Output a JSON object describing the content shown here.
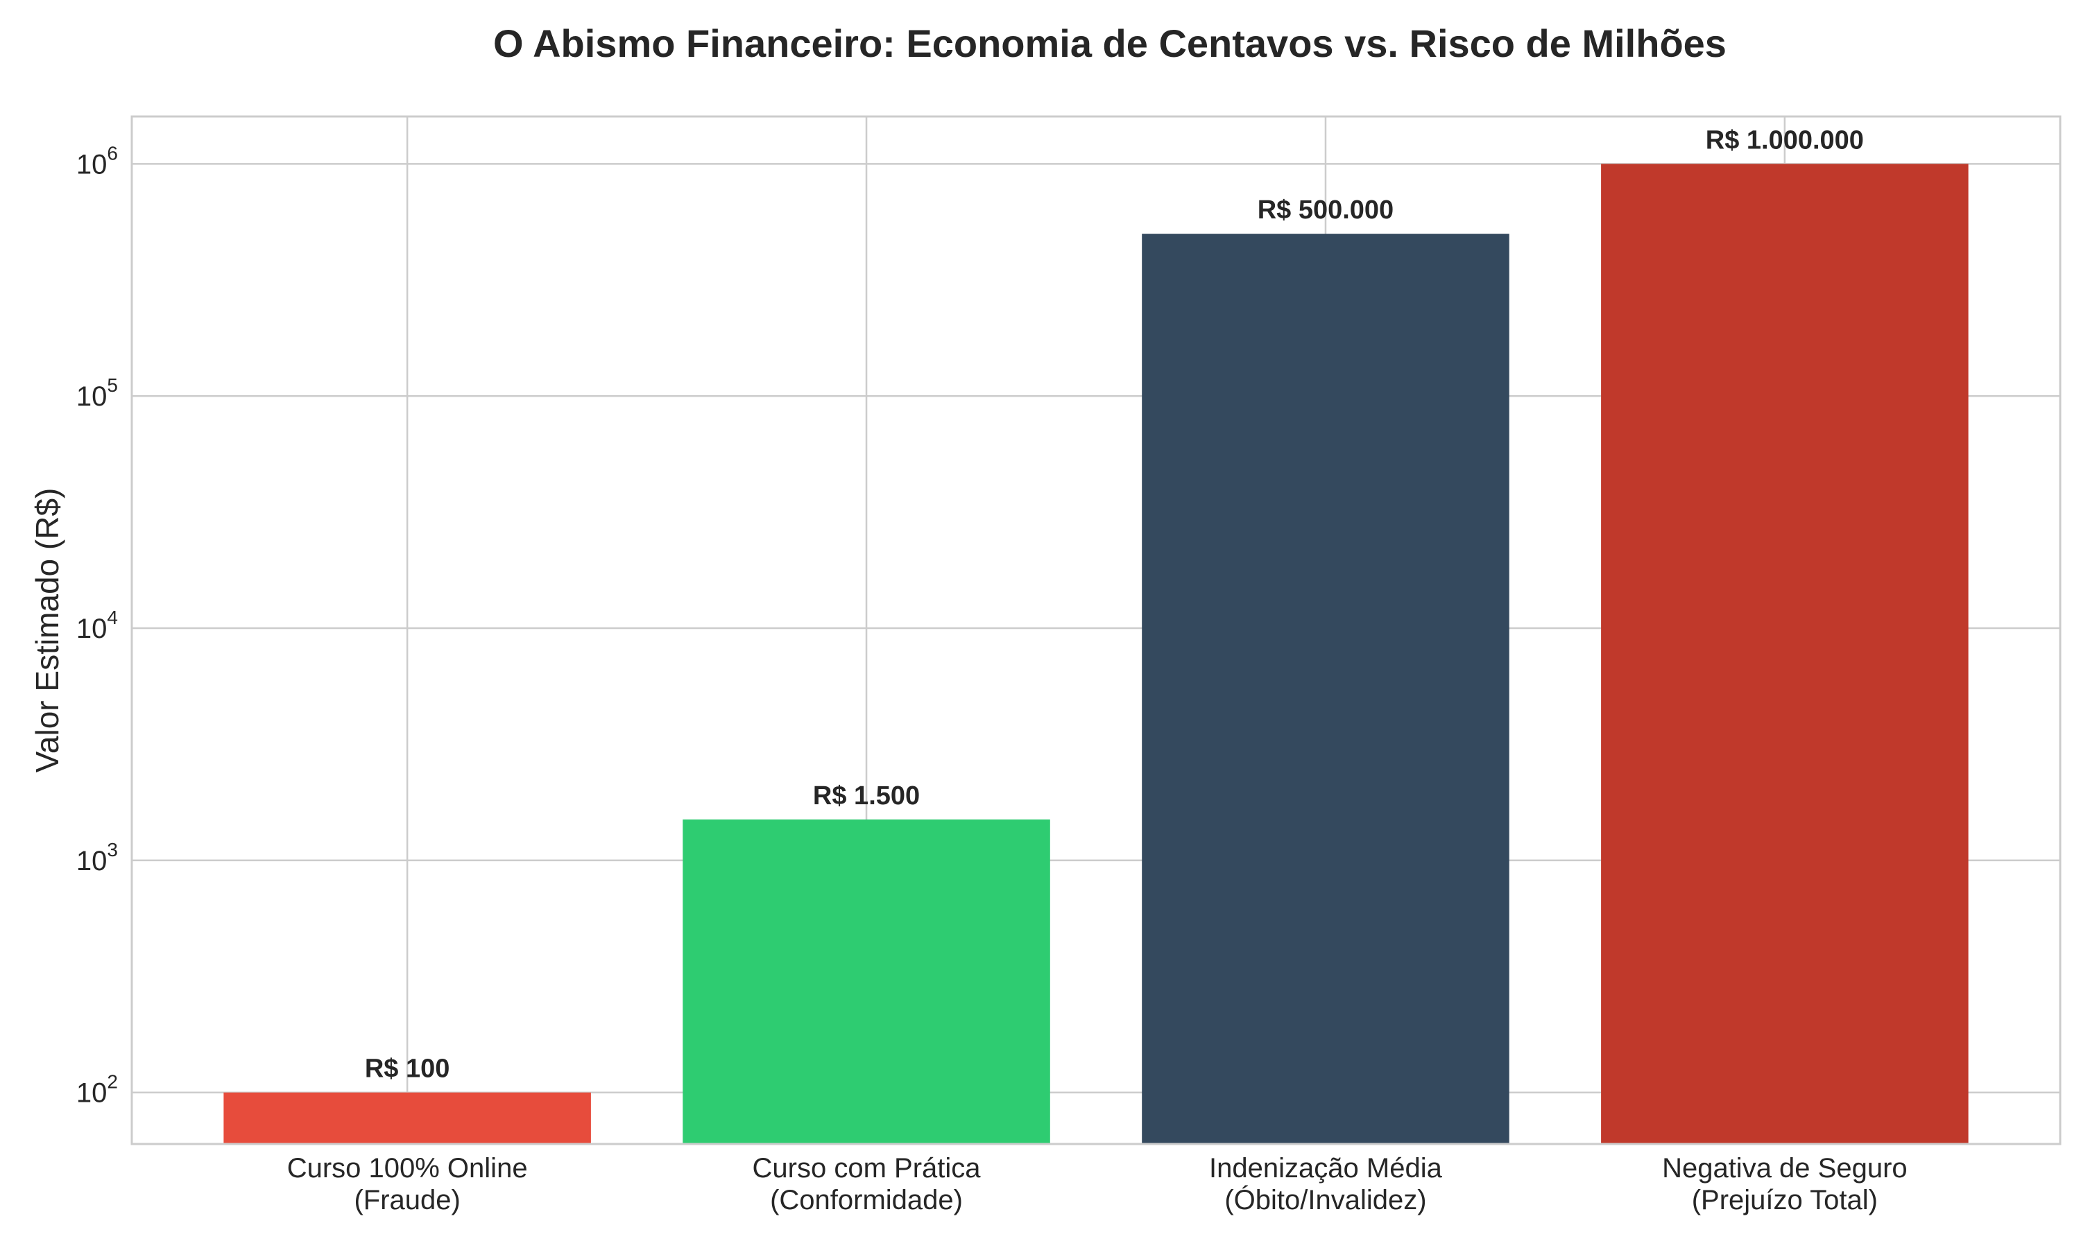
{
  "chart_data": {
    "type": "bar",
    "title": "O Abismo Financeiro: Economia de Centavos vs. Risco de Milhões",
    "xlabel": "",
    "ylabel": "Valor Estimado (R$)",
    "yscale": "log",
    "ylim": [
      60,
      1600000
    ],
    "yticks": [
      {
        "base": "10",
        "exp": "2",
        "value": 100
      },
      {
        "base": "10",
        "exp": "3",
        "value": 1000
      },
      {
        "base": "10",
        "exp": "4",
        "value": 10000
      },
      {
        "base": "10",
        "exp": "5",
        "value": 100000
      },
      {
        "base": "10",
        "exp": "6",
        "value": 1000000
      }
    ],
    "grid": true,
    "categories": [
      [
        "Curso 100% Online",
        "(Fraude)"
      ],
      [
        "Curso com Prática",
        "(Conformidade)"
      ],
      [
        "Indenização Média",
        "(Óbito/Invalidez)"
      ],
      [
        "Negativa de Seguro",
        "(Prejuízo Total)"
      ]
    ],
    "values": [
      100,
      1500,
      500000,
      1000000
    ],
    "data_labels": [
      "R$ 100",
      "R$ 1.500",
      "R$ 500.000",
      "R$ 1.000.000"
    ],
    "colors": [
      "#e74c3c",
      "#2ecc71",
      "#34495e",
      "#c0392b"
    ]
  }
}
